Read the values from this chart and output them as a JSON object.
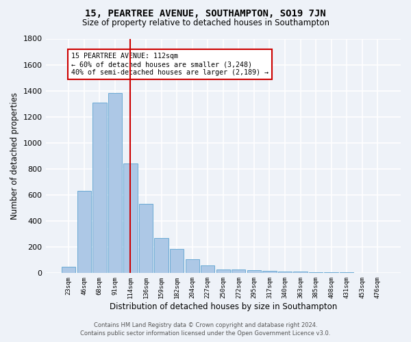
{
  "title": "15, PEARTREE AVENUE, SOUTHAMPTON, SO19 7JN",
  "subtitle": "Size of property relative to detached houses in Southampton",
  "xlabel": "Distribution of detached houses by size in Southampton",
  "ylabel": "Number of detached properties",
  "categories": [
    "23sqm",
    "46sqm",
    "68sqm",
    "91sqm",
    "114sqm",
    "136sqm",
    "159sqm",
    "182sqm",
    "204sqm",
    "227sqm",
    "250sqm",
    "272sqm",
    "295sqm",
    "317sqm",
    "340sqm",
    "363sqm",
    "385sqm",
    "408sqm",
    "431sqm",
    "453sqm",
    "476sqm"
  ],
  "values": [
    50,
    630,
    1310,
    1380,
    840,
    530,
    270,
    185,
    105,
    60,
    30,
    28,
    25,
    15,
    12,
    10,
    8,
    7,
    5,
    4,
    3
  ],
  "bar_color": "#adc8e6",
  "bar_edge_color": "#6aaad4",
  "highlight_index": 4,
  "highlight_color": "#cc0000",
  "annotation_text": "15 PEARTREE AVENUE: 112sqm\n← 60% of detached houses are smaller (3,248)\n40% of semi-detached houses are larger (2,189) →",
  "annotation_box_color": "white",
  "annotation_box_edge": "#cc0000",
  "ylim": [
    0,
    1800
  ],
  "yticks": [
    0,
    200,
    400,
    600,
    800,
    1000,
    1200,
    1400,
    1600,
    1800
  ],
  "footer_line1": "Contains HM Land Registry data © Crown copyright and database right 2024.",
  "footer_line2": "Contains public sector information licensed under the Open Government Licence v3.0.",
  "bg_color": "#eef2f8",
  "grid_color": "white",
  "title_fontsize": 10,
  "subtitle_fontsize": 8.5
}
